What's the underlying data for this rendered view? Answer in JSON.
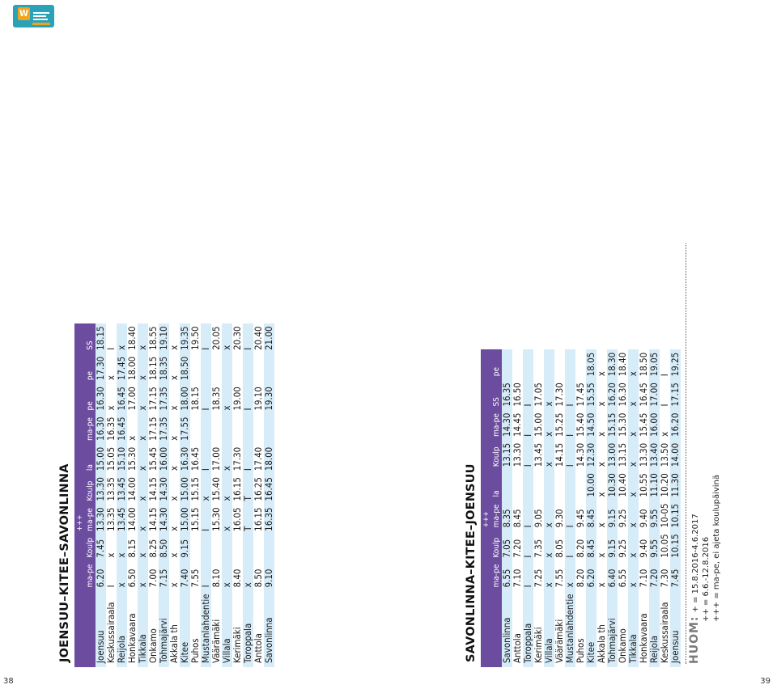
{
  "page_left": "38",
  "page_right": "39",
  "logo": {
    "letter": "W"
  },
  "table1": {
    "title": "JOENSUU–KITEE–SAVONLINNA",
    "cols": [
      "ma-pe",
      "Koulp",
      "ma-pe",
      "Koulp",
      "la",
      "ma-pe",
      "pe",
      "pe",
      "SS"
    ],
    "cols_top": [
      "",
      "",
      "+++",
      "",
      "",
      "",
      "",
      "",
      ""
    ],
    "rows": [
      [
        "Joensuu",
        "6.20",
        "7.45",
        "13.30",
        "13.30",
        "15.00",
        "16.30",
        "16.30",
        "17.30",
        "18.15"
      ],
      [
        "Keskussairaala",
        "I",
        "x",
        "13.35",
        "13.35",
        "15.05",
        "16.35",
        "x",
        "x",
        "I"
      ],
      [
        "Reijola",
        "x",
        "x",
        "13.45",
        "13.45",
        "15.10",
        "16.45",
        "16.45",
        "17.45",
        "x"
      ],
      [
        "Honkavaara",
        "6.50",
        "8.15",
        "14.00",
        "14.00",
        "15.30",
        "x",
        "17.00",
        "18.00",
        "18.40"
      ],
      [
        "Tikkala",
        "x",
        "x",
        "x",
        "x",
        "x",
        "x",
        "x",
        "x",
        "x"
      ],
      [
        "Onkamo",
        "7.00",
        "8.25",
        "14.15",
        "14.15",
        "15.45",
        "17.15",
        "17.15",
        "18.15",
        "18.55"
      ],
      [
        "Tohmajärvi",
        "7.15",
        "8.50",
        "14.30",
        "14.30",
        "16.00",
        "17.35",
        "17.35",
        "18.35",
        "19.10"
      ],
      [
        "Akkala th",
        "x",
        "x",
        "x",
        "x",
        "x",
        "x",
        "x",
        "x",
        "x"
      ],
      [
        "Kitee",
        "7.40",
        "9.15",
        "15.00",
        "15.00",
        "16.30",
        "17.55",
        "18.00",
        "18.50",
        "19.35"
      ],
      [
        "Puhos",
        "7.55",
        "",
        "15.15",
        "15.15",
        "16.45",
        "",
        "18.15",
        "",
        "19.50"
      ],
      [
        "Mustanlahdentie",
        "I",
        "",
        "I",
        "x",
        "I",
        "",
        "I",
        "",
        "I"
      ],
      [
        "Väärämäki",
        "8.10",
        "",
        "15.30",
        "15.40",
        "17.00",
        "",
        "18.35",
        "",
        "20.05"
      ],
      [
        "Villala",
        "x",
        "",
        "x",
        "x",
        "x",
        "",
        "x",
        "",
        "x"
      ],
      [
        "Kerimäki",
        "8.40",
        "",
        "16.05",
        "16.15",
        "17.30",
        "",
        "19.00",
        "",
        "20.30"
      ],
      [
        "Toroppala",
        "x",
        "",
        "T",
        "T",
        "I",
        "",
        "I",
        "",
        "I"
      ],
      [
        "Anttola",
        "8.50",
        "",
        "16.15",
        "16.25",
        "17.40",
        "",
        "19.10",
        "",
        "20.40"
      ],
      [
        "Savonlinna",
        "9.10",
        "",
        "16.35",
        "16.45",
        "18.00",
        "",
        "19.30",
        "",
        "21.00"
      ]
    ]
  },
  "table2": {
    "title": "SAVONLINNA–KITEE–JOENSUU",
    "cols": [
      "ma-pe",
      "Koulp",
      "ma-pe",
      "la",
      "Koulp",
      "ma-pe",
      "SS",
      "pe"
    ],
    "cols_top": [
      "",
      "",
      "+++",
      "",
      "",
      "",
      "",
      ""
    ],
    "rows": [
      [
        "Savonlinna",
        "6.55",
        "7.05",
        "8.35",
        "",
        "13.15",
        "14.30",
        "16.35"
      ],
      [
        "Anttola",
        "7.10",
        "7.20",
        "8.45",
        "",
        "13.30",
        "14.45",
        "16.50"
      ],
      [
        "Toroppala",
        "I",
        "I",
        "I",
        "",
        "I",
        "I",
        "I"
      ],
      [
        "Kerimäki",
        "7.25",
        "7.35",
        "9.05",
        "",
        "13.45",
        "15.00",
        "17.05"
      ],
      [
        "Villala",
        "x",
        "x",
        "x",
        "",
        "x",
        "x",
        "x"
      ],
      [
        "Väärämäki",
        "7.55",
        "8.05",
        "9.30",
        "",
        "14.15",
        "15.25",
        "17.30"
      ],
      [
        "Mustanlahdentie",
        "x",
        "I",
        "I",
        "",
        "I",
        "I",
        "I"
      ],
      [
        "Puhos",
        "8.20",
        "8.20",
        "9.45",
        "",
        "14.30",
        "15.40",
        "17.45"
      ],
      [
        "Kitee",
        "6.20",
        "8.45",
        "8.45",
        "10.00",
        "12.30",
        "14.50",
        "15.55",
        "18.05"
      ],
      [
        "Akkala th",
        "x",
        "x",
        "x",
        "x",
        "x",
        "x",
        "x",
        "x"
      ],
      [
        "Tohmajärvi",
        "6.40",
        "9.15",
        "9.15",
        "10.30",
        "13.00",
        "15.15",
        "16.20",
        "18.30"
      ],
      [
        "Onkamo",
        "6.55",
        "9.25",
        "9.25",
        "10.40",
        "13.15",
        "15.30",
        "16.30",
        "18.40"
      ],
      [
        "Tikkala",
        "x",
        "x",
        "x",
        "x",
        "x",
        "x",
        "x",
        "x"
      ],
      [
        "Honkavaara",
        "7.10",
        "9.40",
        "9.40",
        "10.55",
        "13.30",
        "15.45",
        "16.45",
        "18.50"
      ],
      [
        "Reijola",
        "7.20",
        "9.55",
        "9.55",
        "11.10",
        "13.40",
        "16.00",
        "17.00",
        "19.05"
      ],
      [
        "Keskussairaala",
        "7.30",
        "10.05",
        "10-05",
        "10.20",
        "13.50",
        "x",
        "I",
        "I"
      ],
      [
        "Joensuu",
        "7.45",
        "10.15",
        "10.15",
        "11.30",
        "14.00",
        "16.20",
        "17.15",
        "19.25"
      ]
    ]
  },
  "notes": {
    "label": "HUOM:",
    "lines": [
      "+ = 15.8.2016-4.6.2017",
      "++ = 6.6.-12.8.2016",
      "+++ = ma-pe, ei ajeta koulupäivinä"
    ]
  }
}
